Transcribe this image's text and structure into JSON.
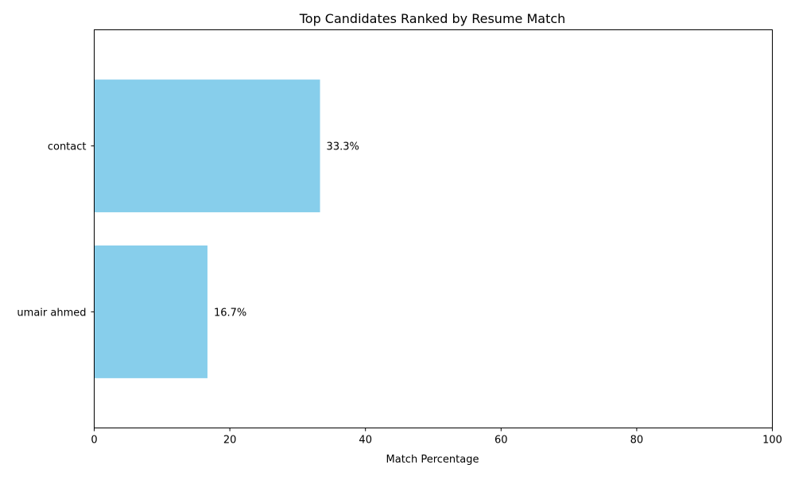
{
  "chart_data": {
    "type": "bar",
    "orientation": "horizontal",
    "title": "Top Candidates Ranked by Resume Match",
    "xlabel": "Match Percentage",
    "ylabel": "",
    "xlim": [
      0,
      100
    ],
    "xticks": [
      "0",
      "20",
      "40",
      "60",
      "80",
      "100"
    ],
    "categories": [
      "contact",
      "umair ahmed"
    ],
    "values": [
      33.3,
      16.7
    ],
    "data_labels": [
      "33.3%",
      "16.7%"
    ],
    "bar_color": "#87ceeb",
    "grid": false,
    "legend": "none"
  }
}
